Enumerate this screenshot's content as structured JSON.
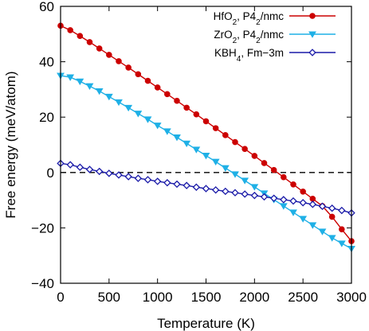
{
  "chart_data": {
    "type": "line",
    "title": "",
    "xlabel": "Temperature (K)",
    "ylabel": "Free energy (meV/atom)",
    "xlim": [
      0,
      3000
    ],
    "ylim": [
      -40,
      60
    ],
    "xticks": [
      0,
      500,
      1000,
      1500,
      2000,
      2500,
      3000
    ],
    "yticks": [
      -40,
      -20,
      0,
      20,
      40,
      60
    ],
    "xtick_labels": [
      "0",
      "500",
      "1000",
      "1500",
      "2000",
      "2500",
      "3000"
    ],
    "ytick_labels": [
      "−40",
      "−20",
      "0",
      "20",
      "40",
      "60"
    ],
    "reference_line": {
      "y": 0,
      "style": "dashed"
    },
    "legend_position": "top-right",
    "grid": false,
    "x": [
      0,
      100,
      200,
      300,
      400,
      500,
      600,
      700,
      800,
      900,
      1000,
      1100,
      1200,
      1300,
      1400,
      1500,
      1600,
      1700,
      1800,
      1900,
      2000,
      2100,
      2200,
      2300,
      2400,
      2500,
      2600,
      2700,
      2800,
      2900,
      3000
    ],
    "series": [
      {
        "name": "HfO2, P42/nmc",
        "label_main": "HfO",
        "label_sub1": "2",
        "label_mid": ", P4",
        "label_sub2": "2",
        "label_end": "/nmc",
        "color": "#cc0000",
        "marker": "circle",
        "values": [
          53.0,
          51.4,
          49.3,
          47.1,
          44.8,
          42.5,
          40.2,
          37.9,
          35.5,
          33.1,
          30.7,
          28.3,
          25.9,
          23.4,
          21.0,
          18.5,
          16.0,
          13.5,
          11.0,
          8.5,
          6.0,
          3.4,
          0.9,
          -1.7,
          -4.3,
          -6.9,
          -9.5,
          -12.1,
          -16.0,
          -20.5,
          -24.8
        ]
      },
      {
        "name": "ZrO2, P42/nmc",
        "label_main": "ZrO",
        "label_sub1": "2",
        "label_mid": ", P4",
        "label_sub2": "2",
        "label_end": "/nmc",
        "color": "#1fb0e6",
        "marker": "triangle-down",
        "values": [
          35.0,
          34.4,
          32.9,
          31.2,
          29.4,
          27.4,
          25.4,
          23.4,
          21.3,
          19.2,
          17.0,
          14.9,
          12.7,
          10.5,
          8.3,
          6.1,
          3.9,
          1.6,
          -0.6,
          -2.9,
          -5.2,
          -7.5,
          -9.8,
          -12.1,
          -14.4,
          -16.7,
          -19.0,
          -21.3,
          -23.6,
          -25.6,
          -27.5
        ]
      },
      {
        "name": "KBH4, Fm−3m",
        "label_main": "KBH",
        "label_sub1": "4",
        "label_mid": ", Fm−3m",
        "label_sub2": "",
        "label_end": "",
        "color": "#1a1aa8",
        "marker": "diamond-open",
        "values": [
          3.3,
          2.8,
          1.9,
          1.1,
          0.4,
          -0.3,
          -0.9,
          -1.5,
          -2.1,
          -2.6,
          -3.2,
          -3.7,
          -4.2,
          -4.7,
          -5.3,
          -5.8,
          -6.3,
          -6.8,
          -7.3,
          -7.8,
          -8.3,
          -8.8,
          -9.3,
          -9.8,
          -10.3,
          -10.9,
          -11.5,
          -12.2,
          -12.9,
          -13.7,
          -14.6
        ]
      }
    ]
  }
}
